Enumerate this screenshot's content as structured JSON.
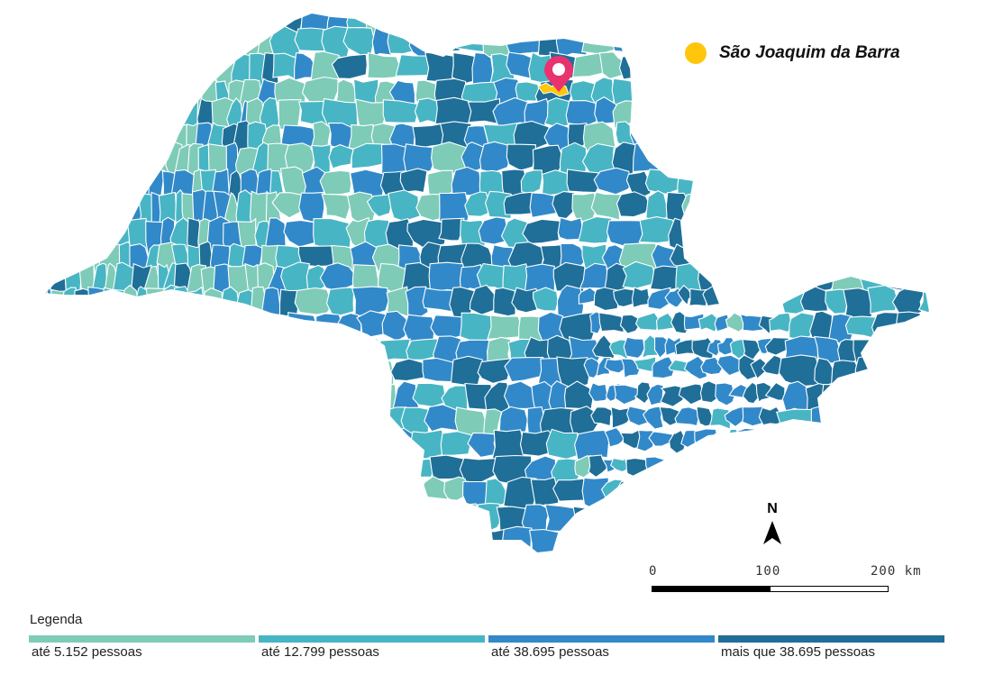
{
  "highlight": {
    "label": "São Joaquim da Barra",
    "color": "#ffc60b",
    "pin_color": "#e8336e"
  },
  "north_arrow": {
    "label": "N"
  },
  "scale": {
    "labels": [
      "0",
      "100",
      "200 km"
    ]
  },
  "legend": {
    "title": "Legenda",
    "items": [
      {
        "label": "até 5.152 pessoas",
        "color": "#7ecbb8"
      },
      {
        "label": "até 12.799 pessoas",
        "color": "#48b5c4"
      },
      {
        "label": "até 38.695 pessoas",
        "color": "#3289c9"
      },
      {
        "label": "mais que 38.695 pessoas",
        "color": "#1f6f98"
      }
    ]
  },
  "map_colors": {
    "border": "#ffffff",
    "class_colors": [
      "#7ecbb8",
      "#48b5c4",
      "#3289c9",
      "#1f6f98"
    ]
  }
}
